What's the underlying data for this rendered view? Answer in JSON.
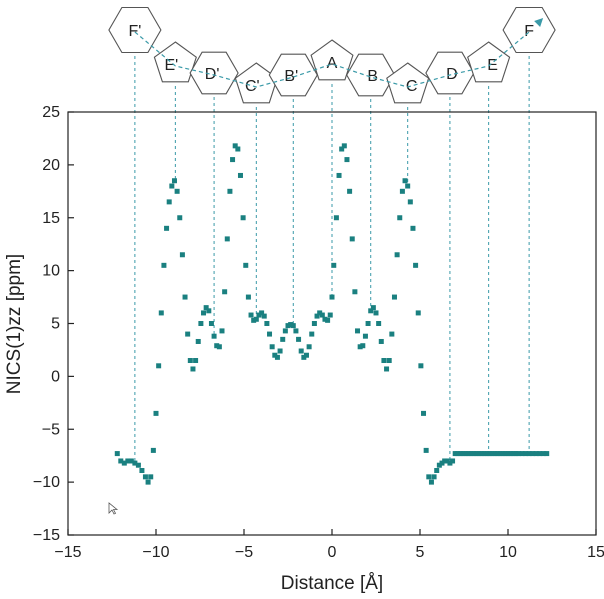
{
  "chart_data": {
    "type": "scatter",
    "xlabel": "Distance [Å]",
    "ylabel": "NICS(1)zz [ppm]",
    "xlim": [
      -15,
      15
    ],
    "ylim": [
      -15,
      25
    ],
    "xticks": [
      "−15",
      "−10",
      "−5",
      "0",
      "5",
      "10",
      "15"
    ],
    "yticks": [
      "−15",
      "−10",
      "−5",
      "0",
      "5",
      "10",
      "15",
      "20",
      "25"
    ],
    "marker_color": "#1a8080",
    "guide_color": "#3a9aa8",
    "ring_labels": [
      "F'",
      "E'",
      "D'",
      "C'",
      "B'",
      "A",
      "B",
      "C",
      "D",
      "E",
      "F"
    ],
    "ring_positions_x": [
      -11.2,
      -8.9,
      -6.7,
      -4.3,
      -2.2,
      0,
      2.2,
      4.3,
      6.7,
      8.9,
      11.2
    ],
    "series": [
      {
        "x": [
          -12.2,
          -12.0,
          -11.8,
          -11.6,
          -11.4,
          -11.2,
          -11.0,
          -10.8,
          -10.6,
          -10.45,
          -10.3,
          -10.15,
          -10.0,
          -9.85,
          -9.7,
          -9.55,
          -9.4,
          -9.25,
          -9.1,
          -8.95,
          -8.8,
          -8.65,
          -8.5,
          -8.35,
          -8.2,
          -8.05,
          -7.9,
          -7.75,
          -7.6,
          -7.45,
          -7.3,
          -7.15,
          -7.0,
          -6.85,
          -6.7,
          -6.55,
          -6.4,
          -6.25,
          -6.1,
          -5.95,
          -5.8,
          -5.65,
          -5.5,
          -5.35,
          -5.2,
          -5.05,
          -4.9,
          -4.75,
          -4.6,
          -4.45,
          -4.3,
          -4.15,
          -4.0,
          -3.85,
          -3.7,
          -3.55,
          -3.4,
          -3.25,
          -3.1,
          -2.95,
          -2.8,
          -2.65,
          -2.5,
          -2.35,
          -2.2,
          -2.05,
          -1.9,
          -1.75,
          -1.6,
          -1.45,
          -1.3,
          -1.15,
          -1.0,
          -0.85,
          -0.7,
          -0.55,
          -0.4,
          -0.25,
          -0.1,
          0.0,
          0.1,
          0.25,
          0.4,
          0.55,
          0.7,
          0.85,
          1.0,
          1.15,
          1.3,
          1.45,
          1.6,
          1.75,
          1.9,
          2.05,
          2.2,
          2.35,
          2.5,
          2.65,
          2.8,
          2.95,
          3.1,
          3.25,
          3.4,
          3.55,
          3.7,
          3.85,
          4.0,
          4.15,
          4.3,
          4.45,
          4.6,
          4.75,
          4.9,
          5.05,
          5.2,
          5.35,
          5.5,
          5.65,
          5.8,
          5.95,
          6.1,
          6.25,
          6.4,
          6.55,
          6.7,
          6.85,
          7.0,
          7.15,
          7.3,
          7.45,
          7.6,
          7.75,
          7.9,
          8.05,
          8.2,
          8.35,
          8.5,
          8.65,
          8.8,
          8.95,
          9.1,
          9.25,
          9.4,
          9.55,
          9.7,
          9.85,
          10.0,
          10.15,
          10.3,
          10.45,
          10.6,
          10.8,
          11.0,
          11.2,
          11.4,
          11.6,
          11.8,
          12.0,
          12.2
        ],
        "y": [
          -7.3,
          -8.0,
          -8.2,
          -8.0,
          -8.0,
          -8.2,
          -8.4,
          -8.9,
          -9.5,
          -10.0,
          -9.5,
          -7.0,
          -3.5,
          1.0,
          6.0,
          10.5,
          14.0,
          16.5,
          18.0,
          18.5,
          17.5,
          15.0,
          11.5,
          7.5,
          4.0,
          1.5,
          0.7,
          1.5,
          3.3,
          5.0,
          6.0,
          6.5,
          6.2,
          5.0,
          3.8,
          2.9,
          2.8,
          4.3,
          8.0,
          13.0,
          17.5,
          20.5,
          21.8,
          21.5,
          19.0,
          15.0,
          10.5,
          7.5,
          5.8,
          5.3,
          5.4,
          5.8,
          6.0,
          5.7,
          5.0,
          4.0,
          2.8,
          2.0,
          1.8,
          2.4,
          3.5,
          4.3,
          4.8,
          4.9,
          4.8,
          4.3,
          3.5,
          2.4,
          1.8,
          2.0,
          2.8,
          4.0,
          5.0,
          5.7,
          6.0,
          5.8,
          5.4,
          5.3,
          5.8,
          7.5,
          10.5,
          15.0,
          19.0,
          21.5,
          21.8,
          20.5,
          17.5,
          13.0,
          8.0,
          4.3,
          2.8,
          2.9,
          3.8,
          5.0,
          6.2,
          6.5,
          6.0,
          5.0,
          3.3,
          1.5,
          0.7,
          1.5,
          4.0,
          7.5,
          11.5,
          15.0,
          17.5,
          18.5,
          18.0,
          16.5,
          14.0,
          10.5,
          6.0,
          1.0,
          -3.5,
          -7.0,
          -9.5,
          -10.0,
          -9.5,
          -8.9,
          -8.4,
          -8.2,
          -8.0,
          -8.0,
          -8.2,
          -8.0,
          -7.3,
          -7.3,
          -7.3,
          -7.3,
          -7.3,
          -7.3,
          -7.3,
          -7.3,
          -7.3,
          -7.3,
          -7.3,
          -7.3,
          -7.3,
          -7.3,
          -7.3,
          -7.3,
          -7.3,
          -7.3,
          -7.3,
          -7.3,
          -7.3,
          -7.3,
          -7.3,
          -7.3,
          -7.3,
          -7.3,
          -7.3,
          -7.3,
          -7.3,
          -7.3,
          -7.3,
          -7.3,
          -7.3
        ]
      }
    ]
  }
}
